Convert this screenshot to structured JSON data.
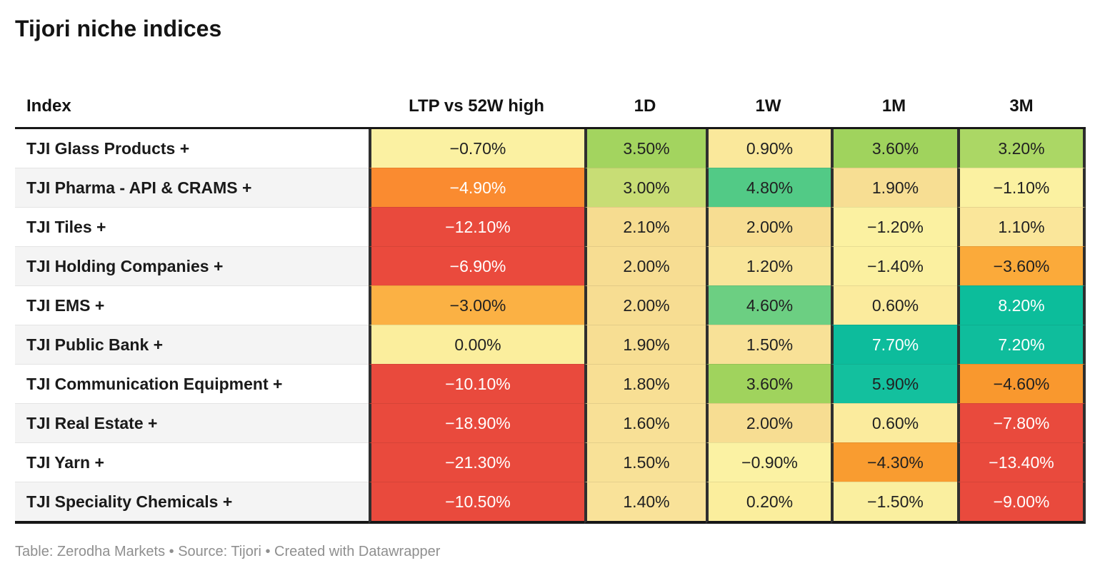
{
  "title": "Tijori niche indices",
  "footer": "Table: Zerodha Markets • Source: Tijori • Created with Datawrapper",
  "colors": {
    "header_rule": "#171717",
    "column_border": "#2f2f2f",
    "zebra_row": "#f4f4f4",
    "footer_text": "#8f8f8f",
    "negative_strong": "#e94a3d",
    "positive_strong": "#0cbd9b"
  },
  "chart_data": {
    "type": "table",
    "title": "Tijori niche indices",
    "columns": [
      "Index",
      "LTP vs 52W high",
      "1D",
      "1W",
      "1M",
      "3M"
    ],
    "rows": [
      {
        "label": "TJI Glass Products +",
        "cells": [
          {
            "text": "−0.70%",
            "value": -0.7,
            "bg": "#fbf1a2",
            "fg": "#212121"
          },
          {
            "text": "3.50%",
            "value": 3.5,
            "bg": "#a3d45f",
            "fg": "#212121"
          },
          {
            "text": "0.90%",
            "value": 0.9,
            "bg": "#fae89b",
            "fg": "#212121"
          },
          {
            "text": "3.60%",
            "value": 3.6,
            "bg": "#a0d35d",
            "fg": "#212121"
          },
          {
            "text": "3.20%",
            "value": 3.2,
            "bg": "#abd765",
            "fg": "#212121"
          }
        ]
      },
      {
        "label": "TJI Pharma - API & CRAMS +",
        "cells": [
          {
            "text": "−4.90%",
            "value": -4.9,
            "bg": "#fa8b30",
            "fg": "#ffffff"
          },
          {
            "text": "3.00%",
            "value": 3.0,
            "bg": "#c8dd75",
            "fg": "#212121"
          },
          {
            "text": "4.80%",
            "value": 4.8,
            "bg": "#52ca86",
            "fg": "#212121"
          },
          {
            "text": "1.90%",
            "value": 1.9,
            "bg": "#f7de93",
            "fg": "#212121"
          },
          {
            "text": "−1.10%",
            "value": -1.1,
            "bg": "#fbf1a1",
            "fg": "#212121"
          }
        ]
      },
      {
        "label": "TJI Tiles +",
        "cells": [
          {
            "text": "−12.10%",
            "value": -12.1,
            "bg": "#e94a3d",
            "fg": "#ffffff"
          },
          {
            "text": "2.10%",
            "value": 2.1,
            "bg": "#f6dc90",
            "fg": "#212121"
          },
          {
            "text": "2.00%",
            "value": 2.0,
            "bg": "#f7dd92",
            "fg": "#212121"
          },
          {
            "text": "−1.20%",
            "value": -1.2,
            "bg": "#fbf1a1",
            "fg": "#212121"
          },
          {
            "text": "1.10%",
            "value": 1.1,
            "bg": "#fae69a",
            "fg": "#212121"
          }
        ]
      },
      {
        "label": "TJI Holding Companies +",
        "cells": [
          {
            "text": "−6.90%",
            "value": -6.9,
            "bg": "#ea4a3d",
            "fg": "#ffffff"
          },
          {
            "text": "2.00%",
            "value": 2.0,
            "bg": "#f7dd92",
            "fg": "#212121"
          },
          {
            "text": "1.20%",
            "value": 1.2,
            "bg": "#f9e599",
            "fg": "#212121"
          },
          {
            "text": "−1.40%",
            "value": -1.4,
            "bg": "#fbf0a0",
            "fg": "#212121"
          },
          {
            "text": "−3.60%",
            "value": -3.6,
            "bg": "#fbaa3a",
            "fg": "#212121"
          }
        ]
      },
      {
        "label": "TJI EMS +",
        "cells": [
          {
            "text": "−3.00%",
            "value": -3.0,
            "bg": "#fbb144",
            "fg": "#212121"
          },
          {
            "text": "2.00%",
            "value": 2.0,
            "bg": "#f7dd92",
            "fg": "#212121"
          },
          {
            "text": "4.60%",
            "value": 4.6,
            "bg": "#6ccf82",
            "fg": "#212121"
          },
          {
            "text": "0.60%",
            "value": 0.6,
            "bg": "#fbeb9d",
            "fg": "#212121"
          },
          {
            "text": "8.20%",
            "value": 8.2,
            "bg": "#0cbd9b",
            "fg": "#ffffff"
          }
        ]
      },
      {
        "label": "TJI Public Bank +",
        "cells": [
          {
            "text": "0.00%",
            "value": 0.0,
            "bg": "#fbee9d",
            "fg": "#212121"
          },
          {
            "text": "1.90%",
            "value": 1.9,
            "bg": "#f7de93",
            "fg": "#212121"
          },
          {
            "text": "1.50%",
            "value": 1.5,
            "bg": "#f8e197",
            "fg": "#212121"
          },
          {
            "text": "7.70%",
            "value": 7.7,
            "bg": "#0dbc9c",
            "fg": "#ffffff"
          },
          {
            "text": "7.20%",
            "value": 7.2,
            "bg": "#0fbd9c",
            "fg": "#ffffff"
          }
        ]
      },
      {
        "label": "TJI Communication Equipment +",
        "cells": [
          {
            "text": "−10.10%",
            "value": -10.1,
            "bg": "#e94a3d",
            "fg": "#ffffff"
          },
          {
            "text": "1.80%",
            "value": 1.8,
            "bg": "#f8df94",
            "fg": "#212121"
          },
          {
            "text": "3.60%",
            "value": 3.6,
            "bg": "#a0d35d",
            "fg": "#212121"
          },
          {
            "text": "5.90%",
            "value": 5.9,
            "bg": "#13c09e",
            "fg": "#212121"
          },
          {
            "text": "−4.60%",
            "value": -4.6,
            "bg": "#f9982e",
            "fg": "#212121"
          }
        ]
      },
      {
        "label": "TJI Real Estate +",
        "cells": [
          {
            "text": "−18.90%",
            "value": -18.9,
            "bg": "#e94a3d",
            "fg": "#ffffff"
          },
          {
            "text": "1.60%",
            "value": 1.6,
            "bg": "#f8e096",
            "fg": "#212121"
          },
          {
            "text": "2.00%",
            "value": 2.0,
            "bg": "#f7dd92",
            "fg": "#212121"
          },
          {
            "text": "0.60%",
            "value": 0.6,
            "bg": "#fbeb9d",
            "fg": "#212121"
          },
          {
            "text": "−7.80%",
            "value": -7.8,
            "bg": "#e94a3d",
            "fg": "#ffffff"
          }
        ]
      },
      {
        "label": "TJI Yarn +",
        "cells": [
          {
            "text": "−21.30%",
            "value": -21.3,
            "bg": "#e94a3d",
            "fg": "#ffffff"
          },
          {
            "text": "1.50%",
            "value": 1.5,
            "bg": "#f8e197",
            "fg": "#212121"
          },
          {
            "text": "−0.90%",
            "value": -0.9,
            "bg": "#fbf2a3",
            "fg": "#212121"
          },
          {
            "text": "−4.30%",
            "value": -4.3,
            "bg": "#f99c30",
            "fg": "#212121"
          },
          {
            "text": "−13.40%",
            "value": -13.4,
            "bg": "#e94a3d",
            "fg": "#ffffff"
          }
        ]
      },
      {
        "label": "TJI Speciality Chemicals +",
        "cells": [
          {
            "text": "−10.50%",
            "value": -10.5,
            "bg": "#e94a3d",
            "fg": "#ffffff"
          },
          {
            "text": "1.40%",
            "value": 1.4,
            "bg": "#f9e299",
            "fg": "#212121"
          },
          {
            "text": "0.20%",
            "value": 0.2,
            "bg": "#fbee9d",
            "fg": "#212121"
          },
          {
            "text": "−1.50%",
            "value": -1.5,
            "bg": "#faef9f",
            "fg": "#212121"
          },
          {
            "text": "−9.00%",
            "value": -9.0,
            "bg": "#e94a3d",
            "fg": "#ffffff"
          }
        ]
      }
    ]
  }
}
